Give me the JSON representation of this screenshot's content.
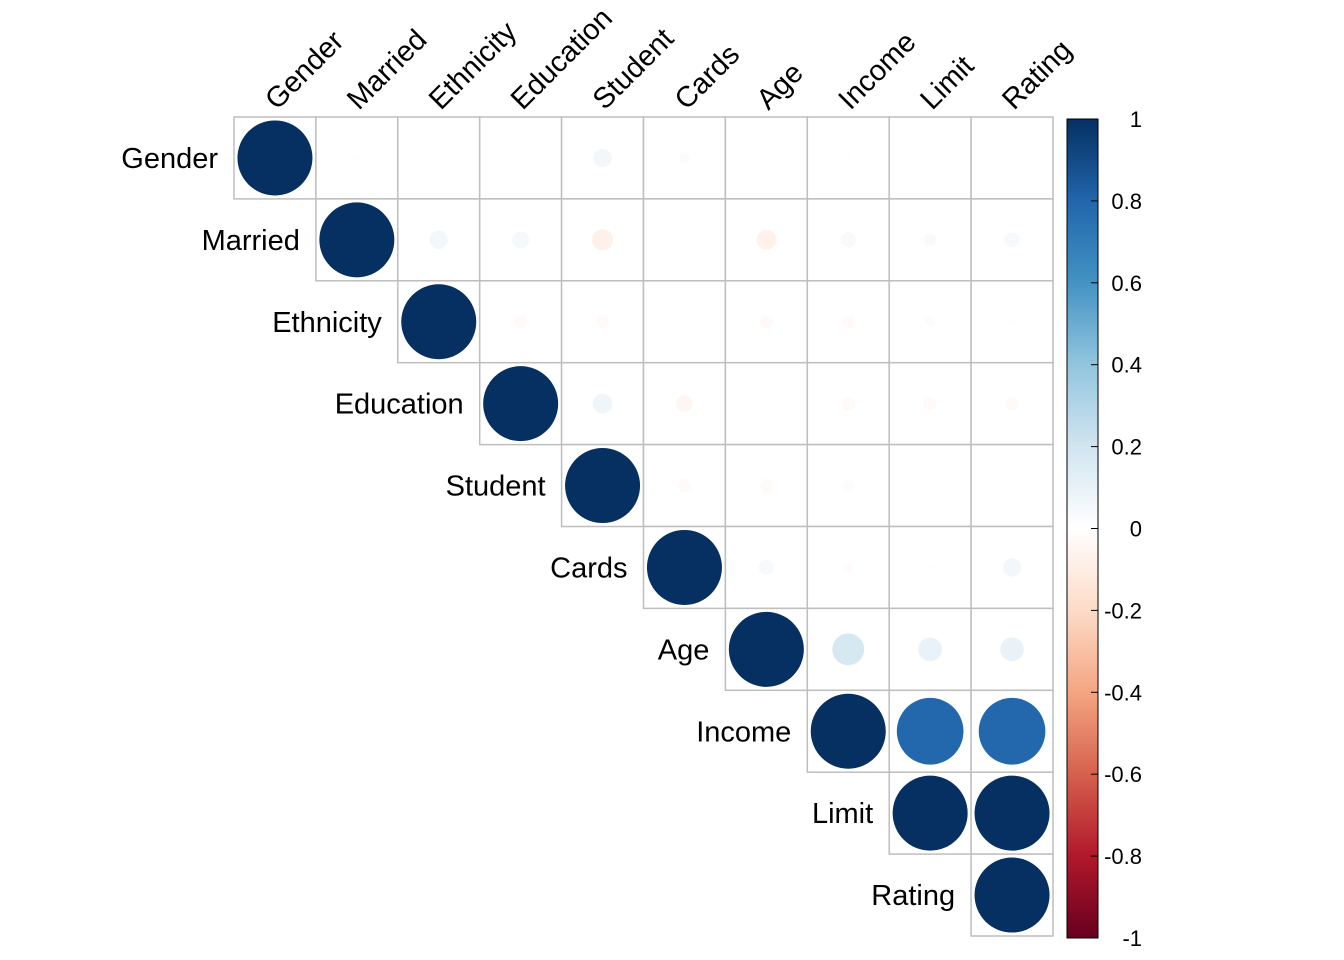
{
  "chart_data": {
    "type": "heatmap",
    "style": "corrplot-circle-upper-triangle",
    "variables": [
      "Gender",
      "Married",
      "Ethnicity",
      "Education",
      "Student",
      "Cards",
      "Age",
      "Income",
      "Limit",
      "Rating"
    ],
    "matrix": [
      [
        1.0,
        0.01,
        0.0,
        0.0,
        0.06,
        0.02,
        0.0,
        0.01,
        0.01,
        0.0
      ],
      [
        0.01,
        1.0,
        0.06,
        0.05,
        -0.08,
        0.0,
        -0.07,
        0.04,
        0.03,
        0.04
      ],
      [
        0.0,
        0.06,
        1.0,
        -0.03,
        -0.03,
        0.0,
        -0.03,
        -0.03,
        0.02,
        0.01
      ],
      [
        0.0,
        0.05,
        -0.03,
        1.0,
        0.07,
        -0.05,
        0.0,
        -0.03,
        -0.03,
        -0.03
      ],
      [
        0.06,
        -0.08,
        -0.03,
        0.07,
        1.0,
        -0.03,
        -0.03,
        0.02,
        0.0,
        0.0
      ],
      [
        0.02,
        0.0,
        0.0,
        -0.05,
        -0.03,
        1.0,
        0.04,
        -0.02,
        0.01,
        0.06
      ],
      [
        0.0,
        -0.07,
        -0.03,
        0.0,
        -0.03,
        0.04,
        1.0,
        0.18,
        0.1,
        0.1
      ],
      [
        0.01,
        0.04,
        -0.03,
        -0.03,
        0.02,
        -0.02,
        0.18,
        1.0,
        0.79,
        0.79
      ],
      [
        0.01,
        0.03,
        0.02,
        -0.03,
        0.0,
        0.01,
        0.1,
        0.79,
        1.0,
        1.0
      ],
      [
        0.0,
        0.04,
        0.01,
        -0.03,
        0.0,
        0.06,
        0.1,
        0.79,
        1.0,
        1.0
      ]
    ],
    "colorbar": {
      "ticks": [
        "1",
        "0.8",
        "0.6",
        "0.4",
        "0.2",
        "0",
        "-0.2",
        "-0.4",
        "-0.6",
        "-0.8",
        "-1"
      ],
      "range": [
        -1,
        1
      ]
    },
    "palette": [
      "#67001F",
      "#B2182B",
      "#D6604D",
      "#F4A582",
      "#FDDBC7",
      "#FFFFFF",
      "#D1E5F0",
      "#92C5DE",
      "#4393C3",
      "#2166AC",
      "#053061"
    ],
    "grid_color": "#bebebe",
    "legend_position": "right"
  }
}
